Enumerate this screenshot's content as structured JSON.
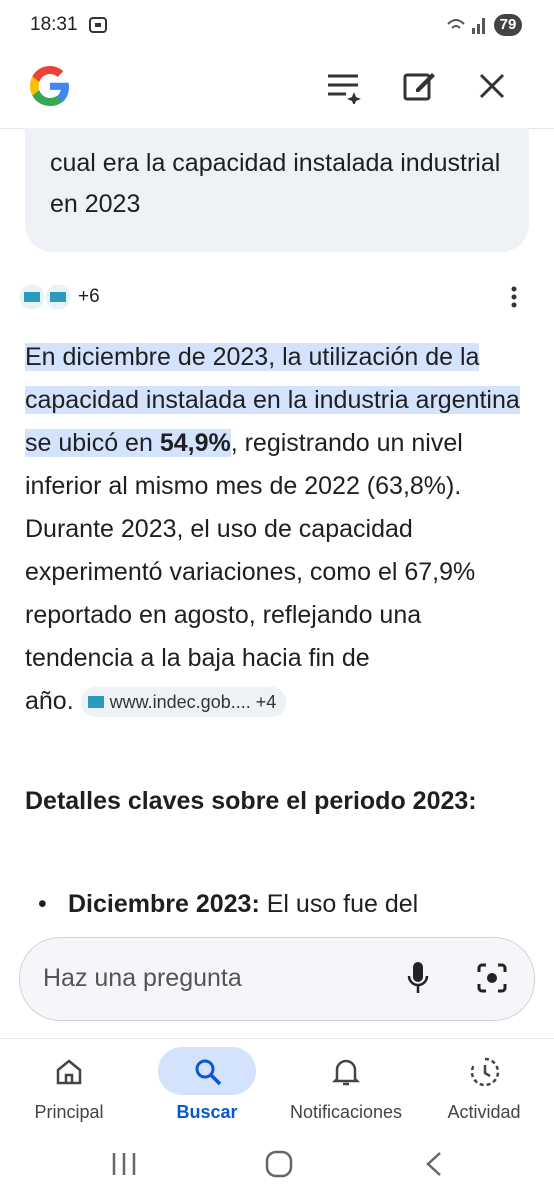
{
  "status_bar": {
    "time": "18:31",
    "battery": "79"
  },
  "query": "cual era la capacidad instalada industrial en 2023",
  "sources_count": "+6",
  "answer": {
    "highlight": "En diciembre de 2023, la utilización de la capacidad instalada en la industria argentina se ubicó en",
    "highlight_bold": "54,9%",
    "rest": ", registrando un nivel inferior al mismo mes de 2022 (63,8%). Durante 2023, el uso de capacidad experimentó variaciones, como el 67,9% reportado en agosto, reflejando una tendencia a la baja hacia fin de",
    "end": "año.",
    "source_chip": "www.indec.gob....",
    "source_more": "+4"
  },
  "details": {
    "heading": "Detalles claves sobre el periodo 2023:",
    "bullets": [
      {
        "label": "Diciembre 2023:",
        "text": "El uso fue del"
      }
    ]
  },
  "input": {
    "placeholder": "Haz una pregunta"
  },
  "nav": [
    "Principal",
    "Buscar",
    "Notificaciones",
    "Actividad"
  ]
}
